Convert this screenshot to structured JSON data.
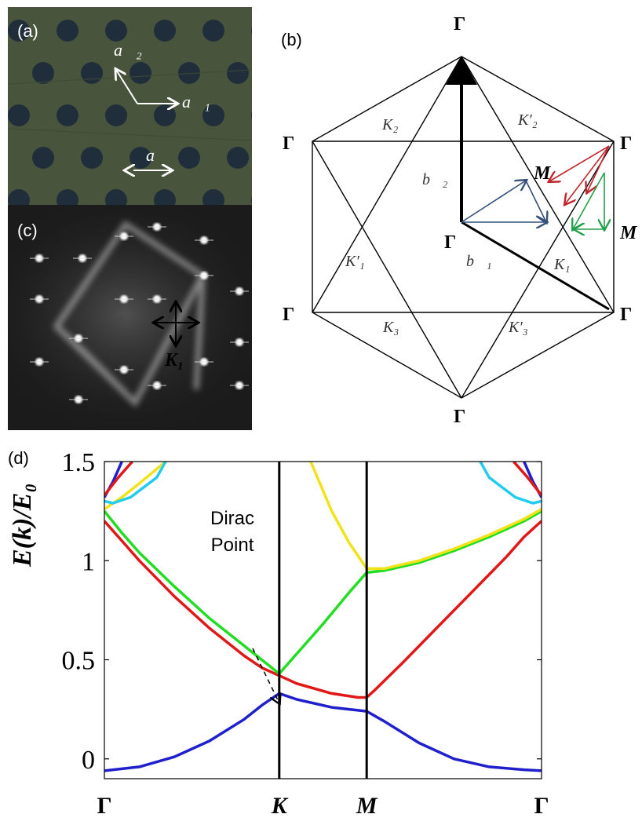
{
  "panel_a": {
    "label": "(a)",
    "vec_a1": "a⃗₁",
    "vec_a2": "a⃗₂",
    "lattice_const": "a"
  },
  "panel_b": {
    "label": "(b)",
    "gamma": "Γ",
    "M": "M",
    "K1": "K₁",
    "K2": "K₂",
    "K3": "K₃",
    "K1p": "K′₁",
    "K2p": "K′₂",
    "K3p": "K′₃",
    "b1": "b⃗₁",
    "b2": "b⃗₂",
    "colors": {
      "blue": "#34507a",
      "red": "#c0262c",
      "green": "#22a04a"
    }
  },
  "panel_c": {
    "label": "(c)",
    "K1": "K₁"
  },
  "panel_d": {
    "label": "(d)",
    "annotation": [
      "Dirac",
      "Point"
    ]
  },
  "chart_data": {
    "type": "line",
    "title": "",
    "xlabel": "",
    "ylabel": "E(k)/E₀",
    "x_ticks": [
      "Γ",
      "K",
      "M",
      "Γ"
    ],
    "x_tick_positions": [
      0,
      1,
      1.5,
      2.5
    ],
    "ylim": [
      -0.1,
      1.5
    ],
    "y_ticks": [
      "0",
      "0.5",
      "1",
      "1.5"
    ],
    "y_tick_values": [
      0,
      0.5,
      1,
      1.5
    ],
    "grid": false,
    "vertical_lines_at": [
      1,
      1.5
    ],
    "series": [
      {
        "color": "#1f1fcc",
        "x": [
          0,
          0.2,
          0.4,
          0.6,
          0.8,
          0.9,
          1,
          1.1,
          1.3,
          1.45,
          1.5,
          1.6,
          1.8,
          2.0,
          2.2,
          2.4,
          2.5
        ],
        "y": [
          -0.06,
          -0.04,
          0.01,
          0.09,
          0.2,
          0.27,
          0.33,
          0.3,
          0.26,
          0.245,
          0.24,
          0.19,
          0.08,
          0.0,
          -0.04,
          -0.055,
          -0.06
        ]
      },
      {
        "color": "#1f1fcc",
        "x": [
          0,
          0.05,
          0.1
        ],
        "y": [
          1.32,
          1.4,
          1.5
        ]
      },
      {
        "color": "#1f1fcc",
        "x": [
          2.4,
          2.45,
          2.5
        ],
        "y": [
          1.5,
          1.4,
          1.32
        ]
      },
      {
        "color": "#e01818",
        "x": [
          0,
          0.1,
          0.2,
          0.4,
          0.6,
          0.8,
          0.9,
          1,
          1.1,
          1.3,
          1.45,
          1.5,
          1.55,
          1.7,
          1.9,
          2.1,
          2.3,
          2.4,
          2.5
        ],
        "y": [
          1.2,
          1.1,
          1.0,
          0.82,
          0.66,
          0.52,
          0.46,
          0.42,
          0.38,
          0.33,
          0.31,
          0.31,
          0.35,
          0.48,
          0.66,
          0.84,
          1.02,
          1.12,
          1.2
        ]
      },
      {
        "color": "#e01818",
        "x": [
          0,
          0.08,
          0.16
        ],
        "y": [
          1.33,
          1.42,
          1.5
        ]
      },
      {
        "color": "#e01818",
        "x": [
          2.34,
          2.42,
          2.5
        ],
        "y": [
          1.5,
          1.42,
          1.33
        ]
      },
      {
        "color": "#22dd22",
        "x": [
          0,
          0.1,
          0.2,
          0.4,
          0.6,
          0.8,
          0.9,
          1,
          1.1,
          1.25,
          1.4,
          1.5,
          1.6,
          1.8,
          2.0,
          2.2,
          2.4,
          2.5
        ],
        "y": [
          1.25,
          1.14,
          1.04,
          0.87,
          0.71,
          0.57,
          0.5,
          0.43,
          0.53,
          0.68,
          0.84,
          0.94,
          0.95,
          0.99,
          1.05,
          1.12,
          1.2,
          1.25
        ]
      },
      {
        "color": "#f2e21a",
        "x": [
          1.18,
          1.3,
          1.4,
          1.5,
          1.6,
          1.8,
          2.0,
          2.2,
          2.4,
          2.5
        ],
        "y": [
          1.5,
          1.25,
          1.09,
          0.96,
          0.96,
          1.0,
          1.06,
          1.13,
          1.21,
          1.26
        ]
      },
      {
        "color": "#f2e21a",
        "x": [
          0,
          0.1,
          0.2,
          0.35
        ],
        "y": [
          1.26,
          1.32,
          1.39,
          1.5
        ]
      },
      {
        "color": "#22ccee",
        "x": [
          0,
          0.05,
          0.15,
          0.3,
          0.35
        ],
        "y": [
          1.3,
          1.29,
          1.32,
          1.42,
          1.5
        ]
      },
      {
        "color": "#22ccee",
        "x": [
          2.15,
          2.2,
          2.35,
          2.45,
          2.5
        ],
        "y": [
          1.5,
          1.42,
          1.32,
          1.29,
          1.3
        ]
      }
    ]
  }
}
